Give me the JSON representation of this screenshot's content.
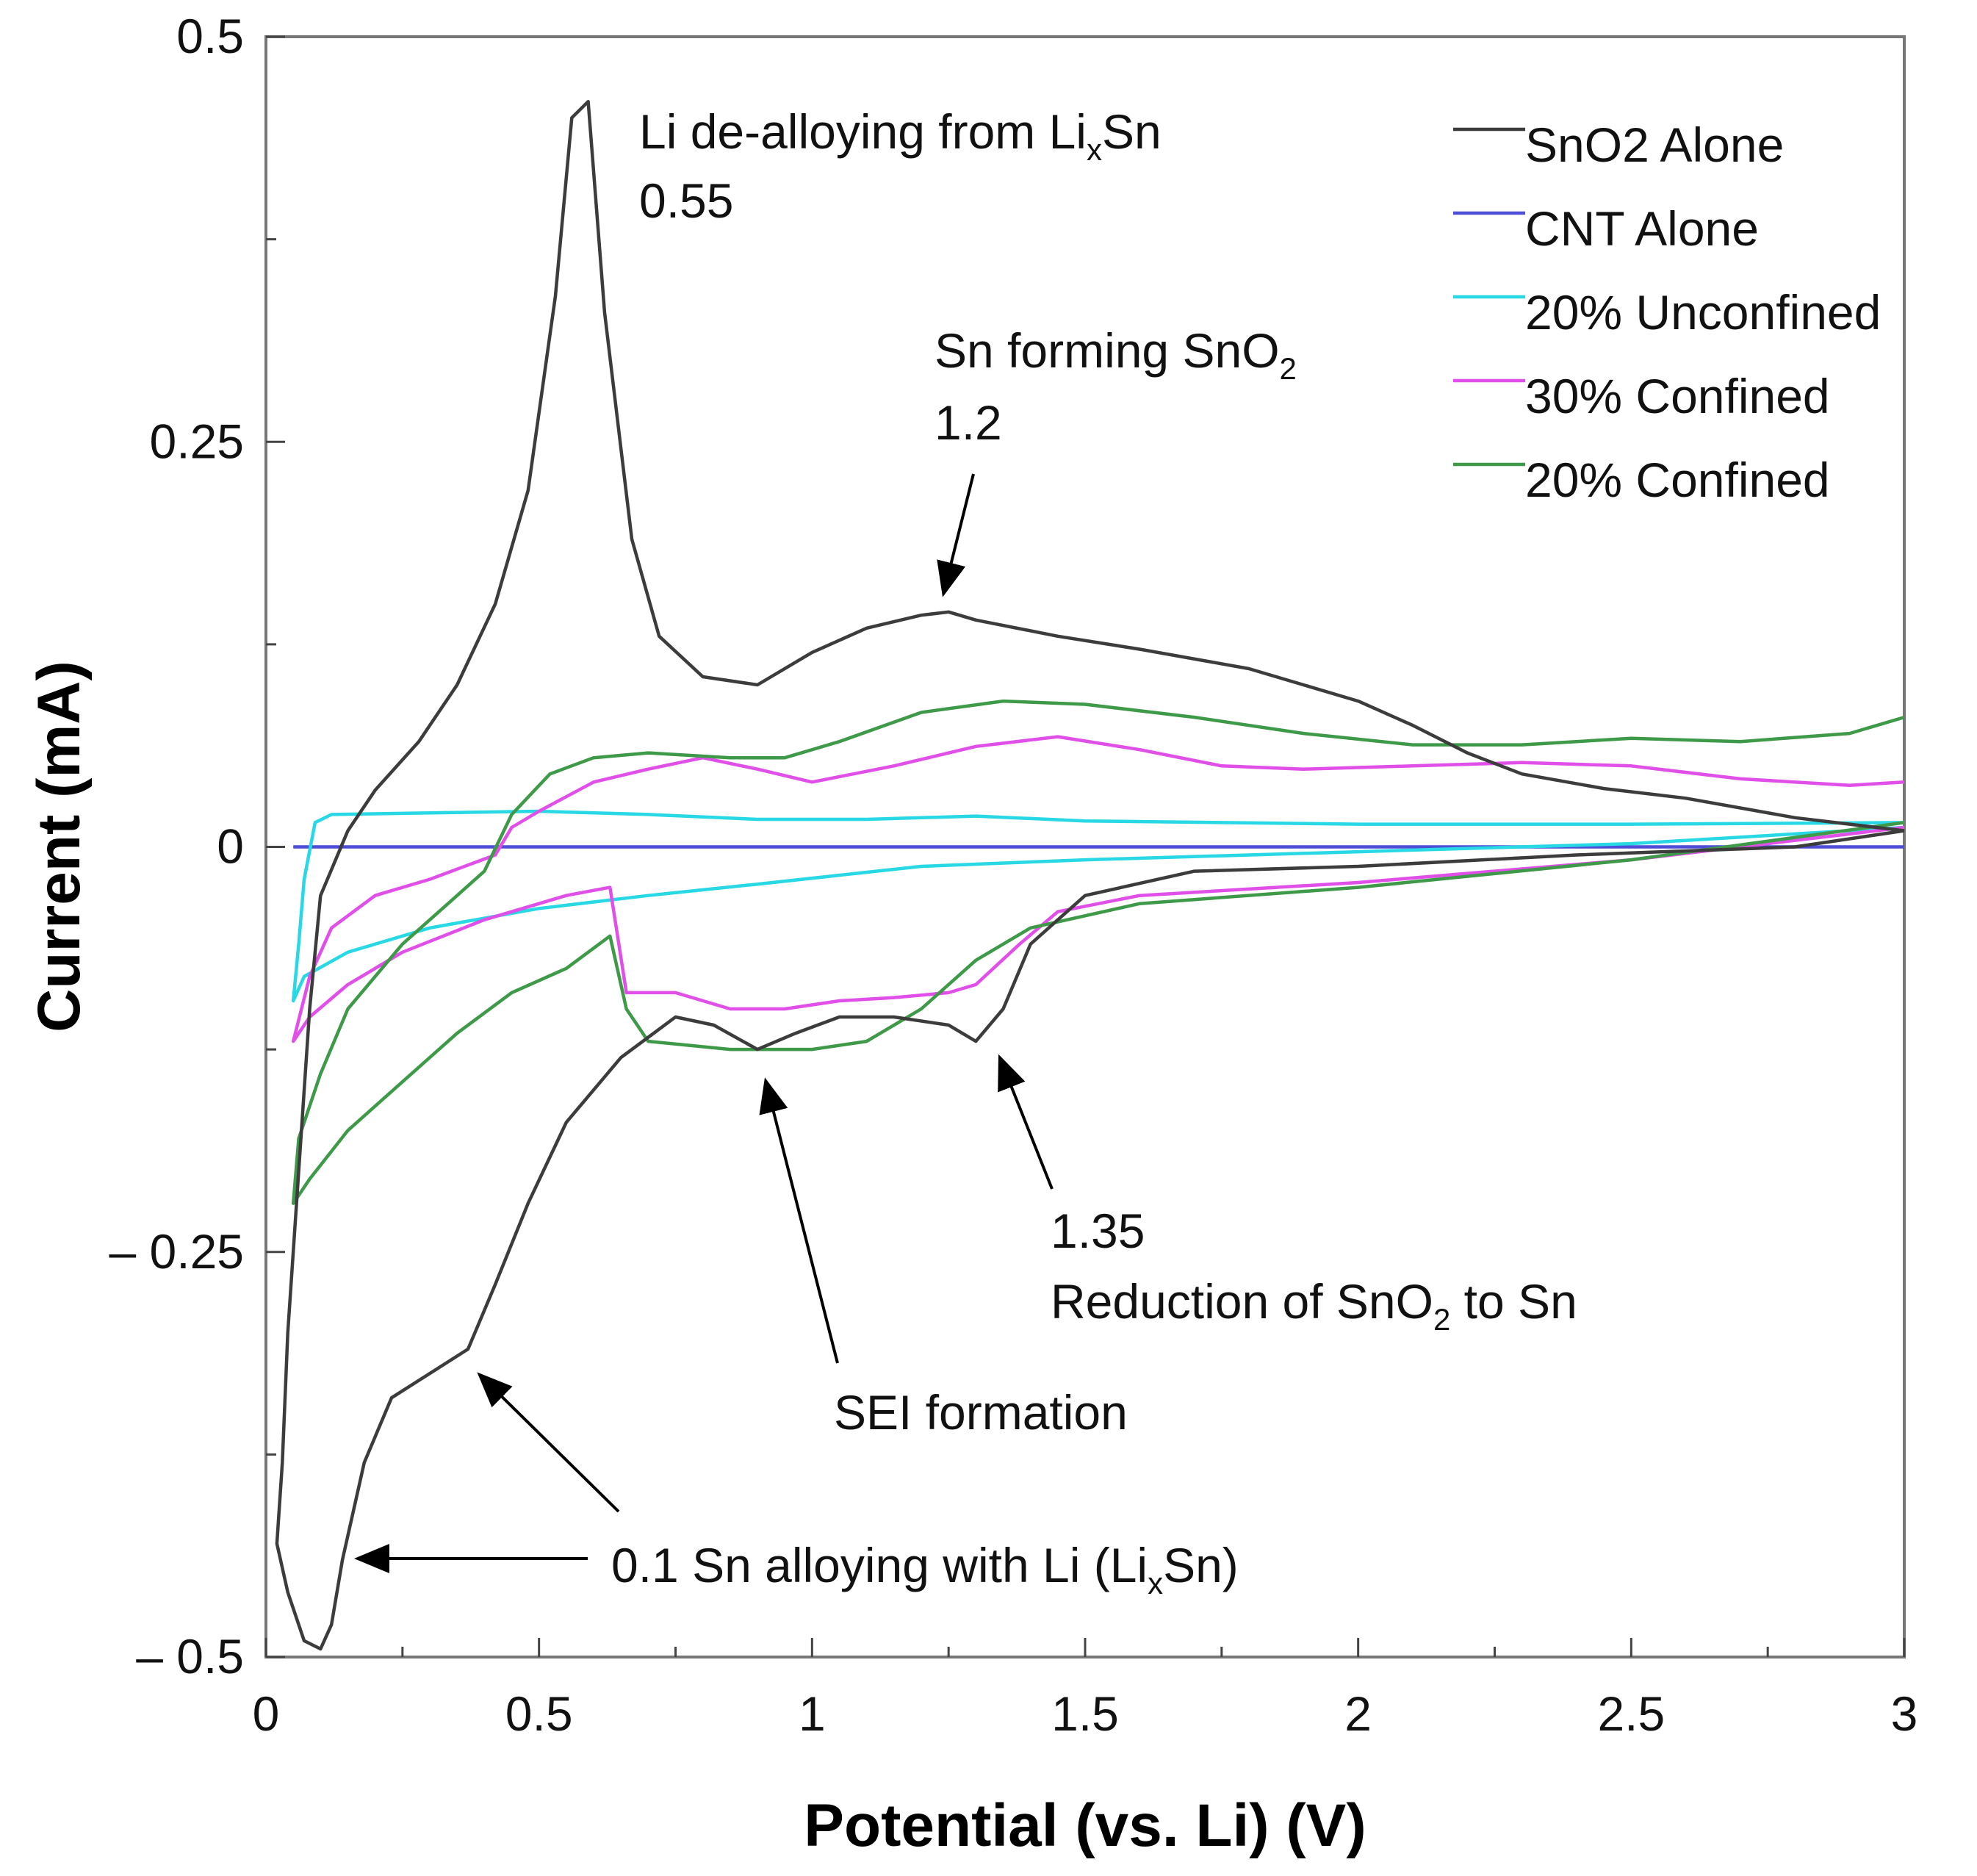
{
  "chart_data": {
    "type": "line",
    "xlabel": "Potential (vs. Li) (V)",
    "ylabel": "Current (mA)",
    "xlim": [
      0,
      3
    ],
    "ylim": [
      -0.5,
      0.5
    ],
    "x_ticks": [
      "0",
      "0.5",
      "1",
      "1.5",
      "2",
      "2.5",
      "3"
    ],
    "y_ticks": [
      "– 0.5",
      "– 0.25",
      "0",
      "0.25",
      "0.5"
    ],
    "y_tick_values": [
      -0.5,
      -0.25,
      0,
      0.25,
      0.5
    ],
    "grid": false,
    "legend_position": "top-right",
    "series": [
      {
        "name": "SnO2 Alone",
        "color": "#3c3c3c",
        "points": [
          [
            3.0,
            0.01
          ],
          [
            2.8,
            0.018
          ],
          [
            2.6,
            0.03
          ],
          [
            2.45,
            0.036
          ],
          [
            2.3,
            0.045
          ],
          [
            2.2,
            0.058
          ],
          [
            2.1,
            0.075
          ],
          [
            2.0,
            0.09
          ],
          [
            1.8,
            0.11
          ],
          [
            1.6,
            0.122
          ],
          [
            1.45,
            0.13
          ],
          [
            1.3,
            0.14
          ],
          [
            1.25,
            0.145
          ],
          [
            1.2,
            0.143
          ],
          [
            1.1,
            0.135
          ],
          [
            1.0,
            0.12
          ],
          [
            0.9,
            0.1
          ],
          [
            0.8,
            0.105
          ],
          [
            0.72,
            0.13
          ],
          [
            0.67,
            0.19
          ],
          [
            0.62,
            0.33
          ],
          [
            0.59,
            0.46
          ],
          [
            0.56,
            0.45
          ],
          [
            0.53,
            0.34
          ],
          [
            0.48,
            0.22
          ],
          [
            0.42,
            0.15
          ],
          [
            0.35,
            0.1
          ],
          [
            0.28,
            0.065
          ],
          [
            0.2,
            0.035
          ],
          [
            0.15,
            0.01
          ],
          [
            0.1,
            -0.03
          ],
          [
            0.08,
            -0.1
          ],
          [
            0.06,
            -0.2
          ],
          [
            0.04,
            -0.3
          ],
          [
            0.03,
            -0.38
          ],
          [
            0.02,
            -0.43
          ],
          [
            0.04,
            -0.46
          ],
          [
            0.07,
            -0.49
          ],
          [
            0.1,
            -0.495
          ],
          [
            0.12,
            -0.48
          ],
          [
            0.14,
            -0.44
          ],
          [
            0.18,
            -0.38
          ],
          [
            0.23,
            -0.34
          ],
          [
            0.3,
            -0.325
          ],
          [
            0.37,
            -0.31
          ],
          [
            0.42,
            -0.27
          ],
          [
            0.48,
            -0.22
          ],
          [
            0.55,
            -0.17
          ],
          [
            0.65,
            -0.13
          ],
          [
            0.75,
            -0.105
          ],
          [
            0.82,
            -0.11
          ],
          [
            0.9,
            -0.125
          ],
          [
            0.97,
            -0.115
          ],
          [
            1.05,
            -0.105
          ],
          [
            1.15,
            -0.105
          ],
          [
            1.25,
            -0.11
          ],
          [
            1.3,
            -0.12
          ],
          [
            1.35,
            -0.1
          ],
          [
            1.4,
            -0.06
          ],
          [
            1.5,
            -0.03
          ],
          [
            1.7,
            -0.015
          ],
          [
            2.0,
            -0.012
          ],
          [
            2.4,
            -0.005
          ],
          [
            2.8,
            0.0
          ],
          [
            3.0,
            0.01
          ]
        ]
      },
      {
        "name": "CNT Alone",
        "color": "#4d4dd6",
        "points": [
          [
            0.05,
            0.0
          ],
          [
            3.0,
            0.0
          ]
        ]
      },
      {
        "name": "20% Unconfined",
        "color": "#28d8e4",
        "points": [
          [
            3.0,
            0.015
          ],
          [
            2.5,
            0.014
          ],
          [
            2.0,
            0.014
          ],
          [
            1.5,
            0.016
          ],
          [
            1.3,
            0.019
          ],
          [
            1.1,
            0.017
          ],
          [
            0.9,
            0.017
          ],
          [
            0.7,
            0.02
          ],
          [
            0.5,
            0.022
          ],
          [
            0.3,
            0.021
          ],
          [
            0.12,
            0.02
          ],
          [
            0.09,
            0.015
          ],
          [
            0.07,
            -0.02
          ],
          [
            0.06,
            -0.06
          ],
          [
            0.05,
            -0.095
          ],
          [
            0.07,
            -0.08
          ],
          [
            0.15,
            -0.065
          ],
          [
            0.3,
            -0.05
          ],
          [
            0.5,
            -0.038
          ],
          [
            0.7,
            -0.03
          ],
          [
            0.9,
            -0.023
          ],
          [
            1.2,
            -0.012
          ],
          [
            1.5,
            -0.008
          ],
          [
            2.0,
            -0.003
          ],
          [
            2.5,
            0.002
          ],
          [
            3.0,
            0.012
          ]
        ]
      },
      {
        "name": "30% Confined",
        "color": "#e04fe8",
        "points": [
          [
            3.0,
            0.04
          ],
          [
            2.9,
            0.038
          ],
          [
            2.7,
            0.042
          ],
          [
            2.5,
            0.05
          ],
          [
            2.3,
            0.052
          ],
          [
            2.1,
            0.05
          ],
          [
            1.9,
            0.048
          ],
          [
            1.75,
            0.05
          ],
          [
            1.6,
            0.06
          ],
          [
            1.45,
            0.068
          ],
          [
            1.3,
            0.062
          ],
          [
            1.15,
            0.05
          ],
          [
            1.0,
            0.04
          ],
          [
            0.9,
            0.048
          ],
          [
            0.8,
            0.055
          ],
          [
            0.7,
            0.048
          ],
          [
            0.6,
            0.04
          ],
          [
            0.5,
            0.022
          ],
          [
            0.45,
            0.012
          ],
          [
            0.42,
            -0.005
          ],
          [
            0.38,
            -0.01
          ],
          [
            0.3,
            -0.02
          ],
          [
            0.2,
            -0.03
          ],
          [
            0.12,
            -0.05
          ],
          [
            0.08,
            -0.08
          ],
          [
            0.05,
            -0.12
          ],
          [
            0.08,
            -0.105
          ],
          [
            0.15,
            -0.085
          ],
          [
            0.25,
            -0.065
          ],
          [
            0.4,
            -0.045
          ],
          [
            0.55,
            -0.03
          ],
          [
            0.63,
            -0.025
          ],
          [
            0.66,
            -0.09
          ],
          [
            0.75,
            -0.09
          ],
          [
            0.85,
            -0.1
          ],
          [
            0.95,
            -0.1
          ],
          [
            1.05,
            -0.095
          ],
          [
            1.15,
            -0.093
          ],
          [
            1.25,
            -0.09
          ],
          [
            1.3,
            -0.085
          ],
          [
            1.38,
            -0.06
          ],
          [
            1.45,
            -0.04
          ],
          [
            1.6,
            -0.03
          ],
          [
            2.0,
            -0.022
          ],
          [
            2.5,
            -0.008
          ],
          [
            3.0,
            0.012
          ]
        ]
      },
      {
        "name": "20% Confined",
        "color": "#3e9a48",
        "points": [
          [
            3.0,
            0.08
          ],
          [
            2.9,
            0.07
          ],
          [
            2.7,
            0.065
          ],
          [
            2.5,
            0.067
          ],
          [
            2.3,
            0.063
          ],
          [
            2.1,
            0.063
          ],
          [
            1.9,
            0.07
          ],
          [
            1.7,
            0.08
          ],
          [
            1.5,
            0.088
          ],
          [
            1.35,
            0.09
          ],
          [
            1.2,
            0.083
          ],
          [
            1.05,
            0.065
          ],
          [
            0.95,
            0.055
          ],
          [
            0.85,
            0.055
          ],
          [
            0.7,
            0.058
          ],
          [
            0.6,
            0.055
          ],
          [
            0.52,
            0.045
          ],
          [
            0.45,
            0.02
          ],
          [
            0.4,
            -0.015
          ],
          [
            0.35,
            -0.03
          ],
          [
            0.25,
            -0.06
          ],
          [
            0.15,
            -0.1
          ],
          [
            0.1,
            -0.14
          ],
          [
            0.06,
            -0.18
          ],
          [
            0.05,
            -0.22
          ],
          [
            0.08,
            -0.205
          ],
          [
            0.15,
            -0.175
          ],
          [
            0.25,
            -0.145
          ],
          [
            0.35,
            -0.115
          ],
          [
            0.45,
            -0.09
          ],
          [
            0.55,
            -0.075
          ],
          [
            0.63,
            -0.055
          ],
          [
            0.66,
            -0.1
          ],
          [
            0.7,
            -0.12
          ],
          [
            0.85,
            -0.125
          ],
          [
            1.0,
            -0.125
          ],
          [
            1.1,
            -0.12
          ],
          [
            1.2,
            -0.1
          ],
          [
            1.3,
            -0.07
          ],
          [
            1.4,
            -0.05
          ],
          [
            1.6,
            -0.035
          ],
          [
            2.0,
            -0.025
          ],
          [
            2.5,
            -0.008
          ],
          [
            3.0,
            0.015
          ]
        ]
      }
    ],
    "annotations": [
      {
        "id": "dealloy",
        "line1": "Li de-alloying from Li",
        "line1_sub": "x",
        "line1_tail": "Sn",
        "line2": "0.55"
      },
      {
        "id": "snform",
        "line1": "Sn forming SnO",
        "line1_sub": "2",
        "line2": "1.2"
      },
      {
        "id": "reduction",
        "line1": "1.35",
        "line2": "Reduction of SnO",
        "line2_sub": "2",
        "line2_tail": " to Sn"
      },
      {
        "id": "sei",
        "line1": "SEI formation"
      },
      {
        "id": "alloy",
        "line1": "0.1 Sn alloying with Li (Li",
        "line1_sub": "x",
        "line1_tail": "Sn)"
      }
    ]
  }
}
